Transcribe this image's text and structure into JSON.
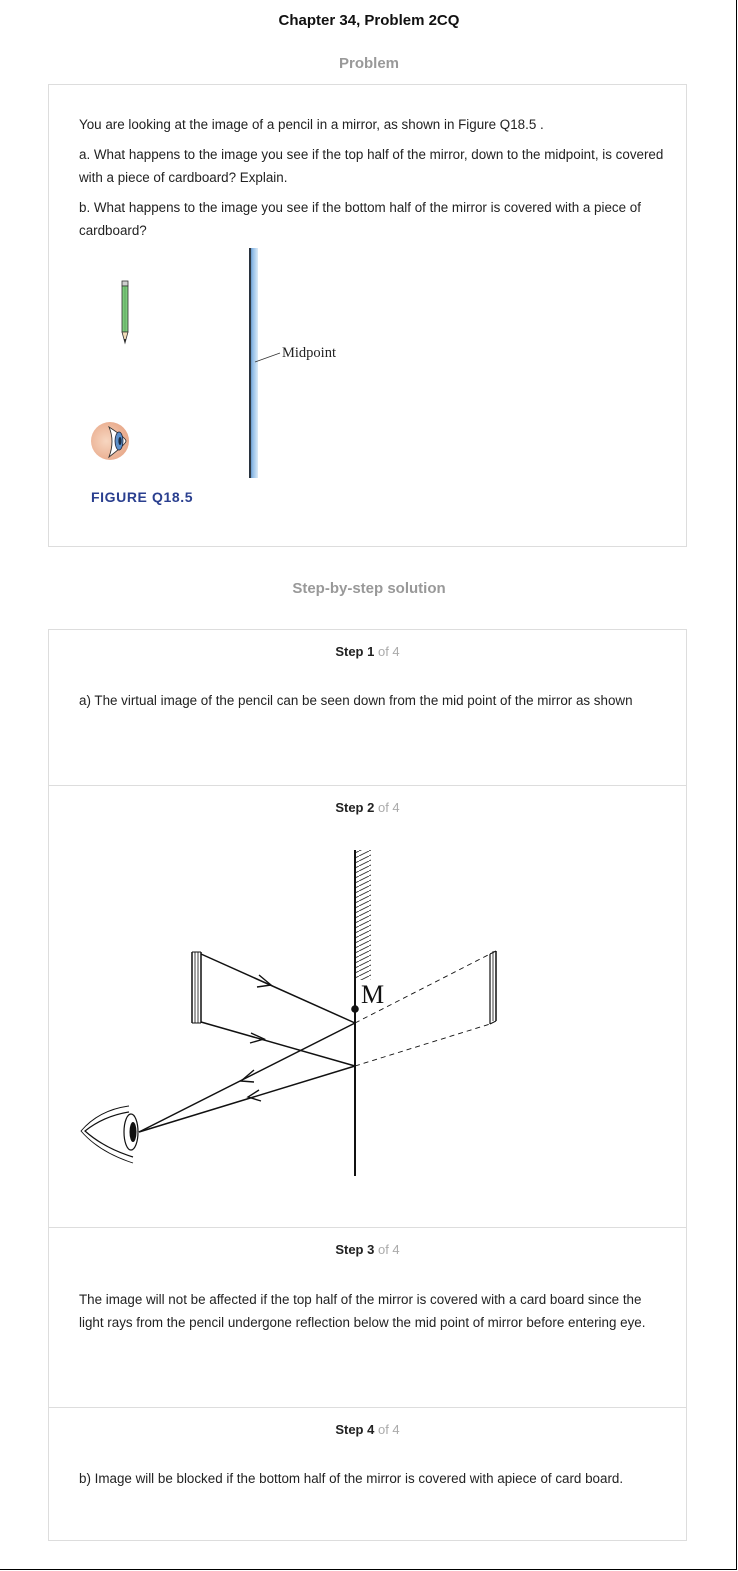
{
  "header": {
    "title": "Chapter 34, Problem 2CQ"
  },
  "problem": {
    "heading": "Problem",
    "intro": "You are looking at the image of a pencil in a mirror, as shown in Figure Q18.5 .",
    "part_a": "a. What happens to the image you see if the top half of the mirror, down to the midpoint, is covered with a piece of cardboard? Explain.",
    "part_b": "b. What happens to the image you see if the bottom half of the mirror is covered with a piece of cardboard?",
    "figure": {
      "midpoint_label": "Midpoint",
      "caption": "FIGURE Q18.5"
    }
  },
  "solution": {
    "heading": "Step-by-step solution",
    "steps": [
      {
        "label": "Step 1",
        "of": "of 4",
        "text": "a) The virtual image of the pencil can be seen down from the mid point of the mirror as shown"
      },
      {
        "label": "Step 2",
        "of": "of 4",
        "diagram_label": "M"
      },
      {
        "label": "Step 3",
        "of": "of 4",
        "text": "The image will not be affected if the top half of the mirror is covered with a card board since the light rays from the pencil undergone reflection below the mid point of mirror before entering eye."
      },
      {
        "label": "Step 4",
        "of": "of 4",
        "text": "b) Image will be blocked if the bottom half of the mirror is covered with apiece of card board."
      }
    ]
  },
  "colors": {
    "caption": "#2a3f8f",
    "heading_gray": "#999999",
    "pencil_green": "#7ccb7c",
    "mirror_blue": "#6fa3d6",
    "skin": "#f2c4a6"
  }
}
